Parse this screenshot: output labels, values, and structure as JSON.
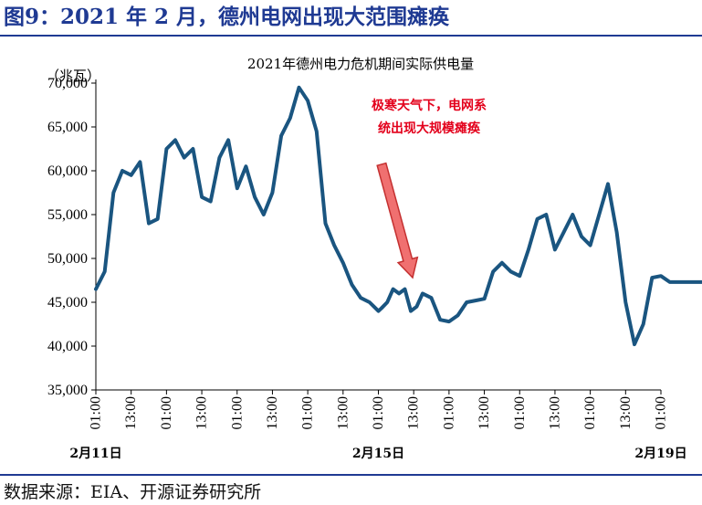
{
  "figure": {
    "title": "图9：2021 年 2 月，德州电网出现大范围瘫痪",
    "source": "数据来源：EIA、开源证券研究所"
  },
  "chart_data": {
    "type": "line",
    "title": "2021年德州电力危机期间实际供电量",
    "ylabel": "（兆瓦）",
    "ylim": [
      35000,
      70000
    ],
    "yticks": [
      "35,000",
      "40,000",
      "45,000",
      "50,000",
      "55,000",
      "60,000",
      "65,000",
      "70,000"
    ],
    "yticks_values": [
      35000,
      40000,
      45000,
      50000,
      55000,
      60000,
      65000,
      70000
    ],
    "xticks": [
      "01:00",
      "13:00",
      "01:00",
      "13:00",
      "01:00",
      "13:00",
      "01:00",
      "13:00",
      "01:00",
      "13:00",
      "01:00",
      "13:00",
      "01:00",
      "13:00",
      "01:00",
      "13:00",
      "01:00"
    ],
    "date_labels": [
      {
        "label": "2月11日",
        "tick_index": 0
      },
      {
        "label": "2月15日",
        "tick_index": 8
      },
      {
        "label": "2月19日",
        "tick_index": 16
      }
    ],
    "annotation": {
      "lines": [
        "极寒天气下，电网系",
        "统出现大规模瘫痪"
      ],
      "color": "#e3001b"
    },
    "line_color": "#1a5580",
    "arrow_color": "#f07070",
    "series": [
      {
        "x_hours": [
          0,
          3,
          6,
          9,
          12,
          15,
          18,
          21,
          24,
          27,
          30,
          33,
          36,
          39,
          42,
          45,
          48,
          51,
          54,
          57,
          60,
          63,
          66,
          69,
          72,
          75,
          78,
          81,
          84,
          87,
          90,
          93,
          94.5,
          96,
          97,
          99,
          101,
          103,
          105,
          107,
          109,
          111,
          114,
          117,
          120,
          123,
          126,
          129,
          132,
          135,
          138,
          141,
          144,
          147,
          150,
          153,
          156,
          159,
          162,
          165,
          168,
          171,
          174,
          177,
          180,
          183,
          186,
          189,
          192,
          195,
          198,
          201,
          204,
          207,
          210,
          213,
          216,
          219,
          222,
          225,
          228,
          231,
          234,
          237,
          240,
          243
        ],
        "values": [
          46500,
          48500,
          57500,
          60000,
          59500,
          61000,
          54000,
          54500,
          62500,
          63500,
          61500,
          62500,
          57000,
          56500,
          61500,
          63500,
          58000,
          60500,
          57000,
          55000,
          57500,
          64000,
          66000,
          69500,
          68000,
          64500,
          54000,
          51500,
          49500,
          47000,
          45500,
          45000,
          44500,
          44000,
          44300,
          45000,
          46500,
          46000,
          46500,
          44000,
          44500,
          46000,
          45500,
          43000,
          42800,
          43500,
          45000,
          45200,
          45400,
          48500,
          49500,
          48500,
          48000,
          51000,
          54500,
          55000,
          51000,
          53000,
          55000,
          52500,
          51500,
          55000,
          58500,
          53000,
          45000,
          40200,
          42500,
          47800,
          48000,
          47300,
          47300,
          47300,
          47300,
          47300,
          47300,
          47300,
          47300,
          47300,
          47300,
          47300,
          47300,
          47300,
          47300,
          47300,
          47300,
          47300
        ]
      }
    ]
  }
}
